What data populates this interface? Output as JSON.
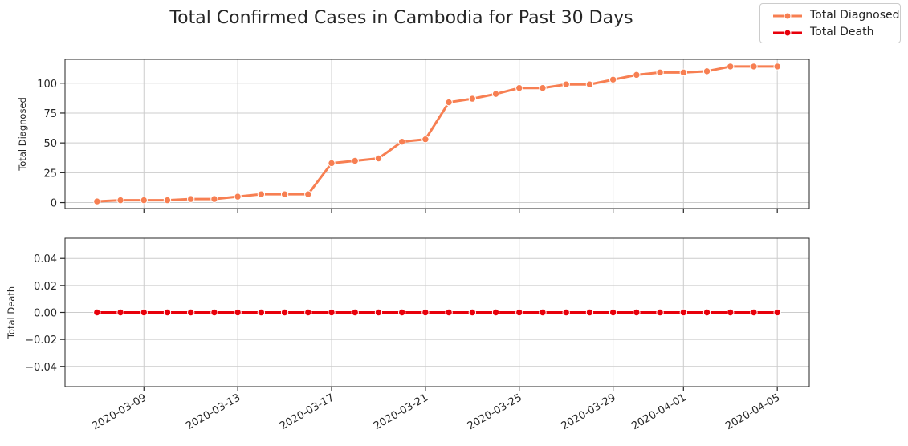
{
  "chart_data": {
    "title": "Total Confirmed Cases in Cambodia for Past 30 Days",
    "type": "line",
    "legend": {
      "placement": "top-right",
      "entries": [
        "Total Diagnosed",
        "Total Death"
      ]
    },
    "dates": [
      "2020-03-07",
      "2020-03-08",
      "2020-03-09",
      "2020-03-10",
      "2020-03-11",
      "2020-03-12",
      "2020-03-13",
      "2020-03-14",
      "2020-03-15",
      "2020-03-16",
      "2020-03-17",
      "2020-03-18",
      "2020-03-19",
      "2020-03-20",
      "2020-03-21",
      "2020-03-22",
      "2020-03-23",
      "2020-03-24",
      "2020-03-25",
      "2020-03-26",
      "2020-03-27",
      "2020-03-28",
      "2020-03-29",
      "2020-03-30",
      "2020-03-31",
      "2020-04-01",
      "2020-04-02",
      "2020-04-03",
      "2020-04-04",
      "2020-04-05"
    ],
    "x_tick_labels": [
      "2020-03-09",
      "2020-03-13",
      "2020-03-17",
      "2020-03-21",
      "2020-03-25",
      "2020-03-29",
      "2020-04-01",
      "2020-04-05"
    ],
    "grid": true,
    "panels": [
      {
        "series_name": "Total Diagnosed",
        "ylabel": "Total Diagnosed",
        "color": "#f77f52",
        "ylim": [
          -5,
          120
        ],
        "y_ticks": [
          0,
          25,
          50,
          75,
          100
        ],
        "y_tick_labels": [
          "0",
          "25",
          "50",
          "75",
          "100"
        ],
        "values": [
          1,
          2,
          2,
          2,
          3,
          3,
          5,
          7,
          7,
          7,
          33,
          35,
          37,
          51,
          53,
          84,
          87,
          91,
          96,
          96,
          99,
          99,
          103,
          107,
          109,
          109,
          110,
          114,
          114,
          114
        ]
      },
      {
        "series_name": "Total Death",
        "ylabel": "Total Death",
        "color": "#e8000b",
        "ylim": [
          -0.055,
          0.055
        ],
        "y_ticks": [
          -0.04,
          -0.02,
          0.0,
          0.02,
          0.04
        ],
        "y_tick_labels": [
          "−0.04",
          "−0.02",
          "0.00",
          "0.02",
          "0.04"
        ],
        "values": [
          0,
          0,
          0,
          0,
          0,
          0,
          0,
          0,
          0,
          0,
          0,
          0,
          0,
          0,
          0,
          0,
          0,
          0,
          0,
          0,
          0,
          0,
          0,
          0,
          0,
          0,
          0,
          0,
          0,
          0
        ]
      }
    ]
  }
}
